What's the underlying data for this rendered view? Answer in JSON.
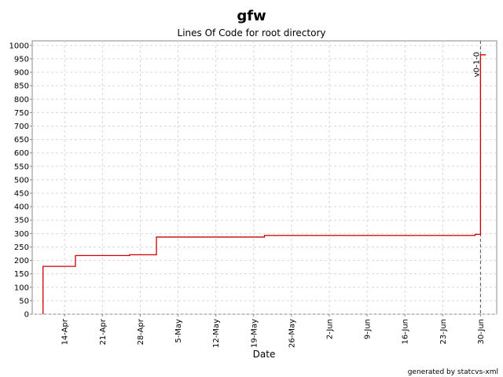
{
  "chart_data": {
    "type": "step",
    "title": "gfw",
    "subtitle": "Lines Of Code for root directory",
    "x_label": "Date",
    "footer": "generated by statcvs-xml",
    "grid": true,
    "x": [
      "10-Apr",
      "10-Apr",
      "16-Apr",
      "26-Apr",
      "1-May",
      "21-May",
      "29-Jun",
      "30-Jun",
      "1-Jul"
    ],
    "series": [
      {
        "name": "Lines Of Code",
        "color": "#cc0000",
        "values": [
          0,
          178,
          218,
          221,
          287,
          293,
          297,
          965,
          965
        ]
      }
    ],
    "xlim": [
      "8-Apr",
      "3-Jul"
    ],
    "xticks": [
      "14-Apr",
      "21-Apr",
      "28-Apr",
      "5-May",
      "12-May",
      "19-May",
      "26-May",
      "2-Jun",
      "9-Jun",
      "16-Jun",
      "23-Jun",
      "30-Jun"
    ],
    "ylim": [
      0,
      1017
    ],
    "yticks": [
      0,
      50,
      100,
      150,
      200,
      250,
      300,
      350,
      400,
      450,
      500,
      550,
      600,
      650,
      700,
      750,
      800,
      850,
      900,
      950,
      1000
    ],
    "annotations": [
      {
        "text": "v0-1-0",
        "x": "30-Jun"
      }
    ]
  }
}
